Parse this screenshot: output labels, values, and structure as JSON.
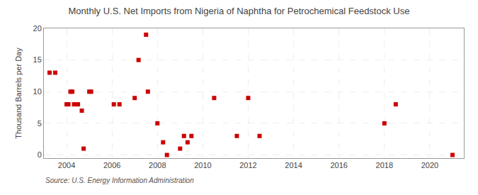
{
  "chart_data": {
    "type": "scatter",
    "title": "Monthly U.S. Net Imports from Nigeria of Naphtha for Petrochemical Feedstock Use",
    "ylabel": "Thousand Barrels per Day",
    "annotations": [
      "Source: U.S. Energy Information Administration"
    ],
    "x": [
      2003.25,
      2003.5,
      2004.0,
      2004.08,
      2004.17,
      2004.25,
      2004.33,
      2004.5,
      2004.67,
      2004.75,
      2005.0,
      2005.08,
      2006.08,
      2006.33,
      2007.0,
      2007.17,
      2007.5,
      2007.58,
      2008.0,
      2008.25,
      2008.42,
      2009.0,
      2009.17,
      2009.33,
      2009.5,
      2010.5,
      2011.5,
      2012.0,
      2012.5,
      2018.0,
      2018.5,
      2021.0
    ],
    "values": [
      13,
      13,
      8,
      8,
      10,
      10,
      8,
      8,
      7,
      1,
      10,
      10,
      8,
      8,
      9,
      15,
      19,
      10,
      5,
      2,
      0,
      1,
      3,
      2,
      3,
      9,
      3,
      9,
      3,
      5,
      8,
      0
    ],
    "color": "#cc0000",
    "marker": "square",
    "xlim": [
      2003.0,
      2021.5
    ],
    "xticks": [
      2004,
      2006,
      2008,
      2010,
      2012,
      2014,
      2016,
      2018,
      2020
    ],
    "ylim": [
      -0.5,
      20
    ],
    "yticks": [
      0,
      5,
      10,
      15,
      20
    ],
    "grid": true
  }
}
